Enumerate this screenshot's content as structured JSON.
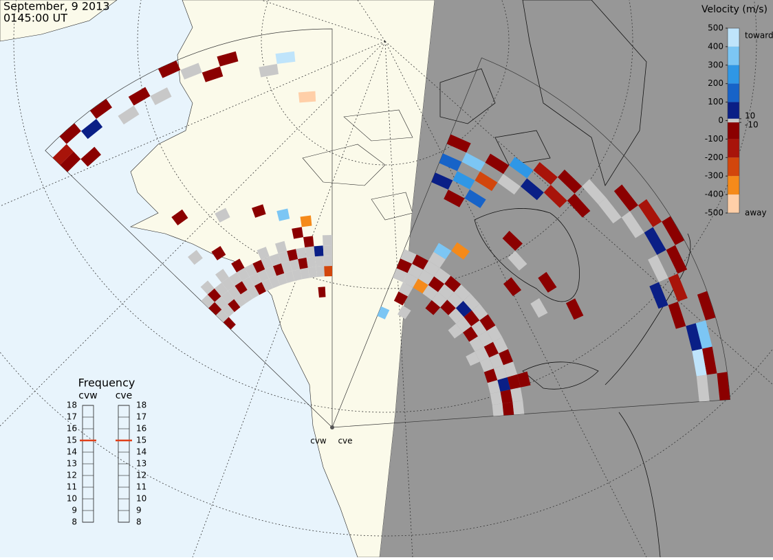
{
  "header": {
    "date": "September, 9 2013",
    "time": "0145:00 UT"
  },
  "velocity_scale": {
    "title": "Velocity (m/s)",
    "ticks": [
      500,
      400,
      300,
      200,
      100,
      10,
      0,
      -10,
      -100,
      -200,
      -300,
      -400,
      -500
    ],
    "colors": [
      "#bfe4fb",
      "#7cc6f4",
      "#2f97e6",
      "#1763c8",
      "#0a1f86",
      "#c8c8c8",
      "#c8c8c8",
      "#8b0000",
      "#a8140a",
      "#d2460c",
      "#f58a1a",
      "#ffcfa8"
    ],
    "toward": "toward",
    "away": "away"
  },
  "frequency": {
    "title": "Frequency",
    "ylim": [
      8,
      18
    ],
    "yticks": [
      8,
      9,
      10,
      11,
      12,
      13,
      14,
      15,
      16,
      17,
      18
    ],
    "marker_color": "#e0401a",
    "values": [
      15,
      15
    ]
  },
  "radars": [
    {
      "name": "cvw",
      "cells": [
        [
          0,
          12,
          0
        ],
        [
          0,
          13,
          -80
        ],
        [
          0,
          14,
          0
        ],
        [
          1,
          12,
          0
        ],
        [
          1,
          13,
          0
        ],
        [
          1,
          14,
          -90
        ],
        [
          2,
          12,
          -70
        ],
        [
          2,
          13,
          0
        ],
        [
          2,
          14,
          0
        ],
        [
          3,
          12,
          0
        ],
        [
          3,
          13,
          0
        ],
        [
          3,
          14,
          0
        ],
        [
          4,
          12,
          0
        ],
        [
          4,
          13,
          -80
        ],
        [
          4,
          14,
          0
        ],
        [
          5,
          12,
          0
        ],
        [
          5,
          13,
          0
        ],
        [
          5,
          14,
          0
        ],
        [
          6,
          12,
          -90
        ],
        [
          6,
          13,
          0
        ],
        [
          6,
          14,
          0
        ],
        [
          7,
          12,
          0
        ],
        [
          7,
          13,
          0
        ],
        [
          7,
          14,
          -70
        ],
        [
          8,
          12,
          0
        ],
        [
          8,
          13,
          0
        ],
        [
          8,
          14,
          0
        ],
        [
          9,
          12,
          0
        ],
        [
          9,
          13,
          -80
        ],
        [
          9,
          14,
          0
        ],
        [
          10,
          12,
          0
        ],
        [
          10,
          13,
          0
        ],
        [
          10,
          14,
          0
        ],
        [
          11,
          12,
          0
        ],
        [
          11,
          13,
          0
        ],
        [
          11,
          14,
          -60
        ],
        [
          12,
          12,
          0
        ],
        [
          12,
          13,
          -90
        ],
        [
          12,
          14,
          0
        ],
        [
          13,
          12,
          0
        ],
        [
          13,
          13,
          0
        ],
        [
          13,
          14,
          0
        ],
        [
          14,
          12,
          0
        ],
        [
          14,
          13,
          0
        ],
        [
          14,
          14,
          60
        ],
        [
          15,
          12,
          -300
        ],
        [
          15,
          13,
          0
        ],
        [
          15,
          14,
          0
        ],
        [
          0,
          11,
          -70
        ],
        [
          1,
          15,
          0
        ],
        [
          3,
          15,
          0
        ],
        [
          5,
          15,
          -80
        ],
        [
          8,
          15,
          0
        ],
        [
          10,
          15,
          0
        ],
        [
          13,
          15,
          -70
        ],
        [
          15,
          15,
          0
        ],
        [
          0,
          33,
          -80
        ],
        [
          0,
          34,
          -150
        ],
        [
          1,
          32,
          -90
        ],
        [
          1,
          35,
          -60
        ],
        [
          2,
          34,
          60
        ],
        [
          3,
          35,
          -70
        ],
        [
          4,
          33,
          0
        ],
        [
          5,
          34,
          -80
        ],
        [
          6,
          33,
          0
        ],
        [
          7,
          35,
          -90
        ],
        [
          8,
          34,
          0
        ],
        [
          9,
          33,
          -70
        ],
        [
          10,
          34,
          -80
        ],
        [
          12,
          32,
          0
        ],
        [
          13,
          33,
          450
        ],
        [
          14,
          29,
          -450
        ],
        [
          3,
          22,
          -60
        ],
        [
          6,
          20,
          0
        ],
        [
          9,
          19,
          -80
        ],
        [
          11,
          18,
          320
        ],
        [
          13,
          17,
          -350
        ],
        [
          12,
          16,
          -70
        ],
        [
          2,
          18,
          0
        ],
        [
          4,
          17,
          -90
        ],
        [
          14,
          10,
          -70
        ]
      ]
    },
    {
      "name": "cve",
      "cells": [
        [
          0,
          13,
          0
        ],
        [
          0,
          14,
          -80
        ],
        [
          0,
          15,
          0
        ],
        [
          1,
          13,
          0
        ],
        [
          1,
          14,
          0
        ],
        [
          1,
          15,
          -90
        ],
        [
          2,
          13,
          -400
        ],
        [
          2,
          14,
          0
        ],
        [
          2,
          15,
          0
        ],
        [
          3,
          13,
          0
        ],
        [
          3,
          14,
          -80
        ],
        [
          3,
          15,
          0
        ],
        [
          4,
          13,
          0
        ],
        [
          4,
          14,
          0
        ],
        [
          4,
          15,
          -70
        ],
        [
          5,
          13,
          -90
        ],
        [
          5,
          14,
          0
        ],
        [
          5,
          15,
          0
        ],
        [
          6,
          13,
          0
        ],
        [
          6,
          14,
          60
        ],
        [
          6,
          15,
          0
        ],
        [
          7,
          13,
          0
        ],
        [
          7,
          14,
          -80
        ],
        [
          7,
          15,
          0
        ],
        [
          8,
          13,
          -70
        ],
        [
          8,
          14,
          0
        ],
        [
          8,
          15,
          -90
        ],
        [
          9,
          13,
          0
        ],
        [
          9,
          14,
          0
        ],
        [
          9,
          15,
          0
        ],
        [
          10,
          13,
          0
        ],
        [
          10,
          14,
          -80
        ],
        [
          10,
          15,
          0
        ],
        [
          11,
          13,
          0
        ],
        [
          11,
          14,
          0
        ],
        [
          11,
          15,
          -60
        ],
        [
          12,
          13,
          -90
        ],
        [
          12,
          14,
          0
        ],
        [
          12,
          15,
          0
        ],
        [
          13,
          13,
          0
        ],
        [
          13,
          14,
          60
        ],
        [
          13,
          15,
          -80
        ],
        [
          14,
          13,
          0
        ],
        [
          14,
          14,
          -70
        ],
        [
          14,
          15,
          0
        ],
        [
          15,
          13,
          0
        ],
        [
          15,
          14,
          -90
        ],
        [
          15,
          15,
          0
        ],
        [
          1,
          12,
          0
        ],
        [
          4,
          12,
          -80
        ],
        [
          7,
          12,
          0
        ],
        [
          10,
          12,
          0
        ],
        [
          13,
          16,
          -70
        ],
        [
          2,
          16,
          0
        ],
        [
          0,
          27,
          -90
        ],
        [
          0,
          25,
          120
        ],
        [
          1,
          26,
          350
        ],
        [
          1,
          24,
          200
        ],
        [
          1,
          22,
          -80
        ],
        [
          0,
          23,
          60
        ],
        [
          2,
          25,
          -300
        ],
        [
          2,
          27,
          -80
        ],
        [
          3,
          28,
          250
        ],
        [
          3,
          26,
          0
        ],
        [
          2,
          23,
          150
        ],
        [
          4,
          29,
          -120
        ],
        [
          4,
          27,
          80
        ],
        [
          5,
          30,
          -90
        ],
        [
          5,
          28,
          -150
        ],
        [
          6,
          31,
          0
        ],
        [
          6,
          29,
          -70
        ],
        [
          7,
          33,
          -80
        ],
        [
          7,
          31,
          0
        ],
        [
          8,
          34,
          -200
        ],
        [
          8,
          32,
          0
        ],
        [
          9,
          35,
          -70
        ],
        [
          9,
          33,
          60
        ],
        [
          10,
          34,
          -80
        ],
        [
          10,
          32,
          0
        ],
        [
          11,
          33,
          -120
        ],
        [
          11,
          31,
          60
        ],
        [
          12,
          35,
          -70
        ],
        [
          12,
          32,
          -100
        ],
        [
          13,
          34,
          350
        ],
        [
          13,
          33,
          60
        ],
        [
          14,
          34,
          -80
        ],
        [
          14,
          33,
          450
        ],
        [
          15,
          35,
          -60
        ],
        [
          15,
          33,
          0
        ],
        [
          5,
          22,
          -70
        ],
        [
          6,
          21,
          0
        ],
        [
          7,
          19,
          -90
        ],
        [
          8,
          22,
          -60
        ],
        [
          9,
          20,
          0
        ],
        [
          10,
          23,
          -80
        ],
        [
          3,
          18,
          -400
        ],
        [
          2,
          17,
          300
        ],
        [
          1,
          11,
          -80
        ],
        [
          2,
          10,
          0
        ],
        [
          0,
          9,
          350
        ]
      ]
    }
  ]
}
